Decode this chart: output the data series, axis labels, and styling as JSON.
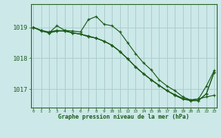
{
  "title": "Graphe pression niveau de la mer (hPa)",
  "bg_color": "#cce8e8",
  "grid_color": "#aacccc",
  "line_color": "#1a5c1a",
  "ylim": [
    1016.4,
    1019.75
  ],
  "yticks": [
    1017,
    1018,
    1019
  ],
  "xlim": [
    0,
    23
  ],
  "xticks": [
    0,
    1,
    2,
    3,
    4,
    5,
    6,
    7,
    8,
    9,
    10,
    11,
    12,
    13,
    14,
    15,
    16,
    17,
    18,
    19,
    20,
    21,
    22,
    23
  ],
  "series": [
    {
      "x": [
        0,
        1,
        2,
        3,
        4,
        5,
        6,
        7,
        8,
        9,
        10,
        11,
        12,
        13,
        14,
        15,
        16,
        17,
        18,
        19,
        20,
        21,
        22,
        23
      ],
      "y": [
        1019.0,
        1018.88,
        1018.82,
        1019.05,
        1018.9,
        1018.88,
        1018.85,
        1019.25,
        1019.35,
        1019.1,
        1019.05,
        1018.85,
        1018.5,
        1018.15,
        1017.85,
        1017.62,
        1017.3,
        1017.1,
        1016.95,
        1016.75,
        1016.65,
        1016.68,
        1017.1,
        1017.6
      ]
    },
    {
      "x": [
        0,
        1,
        2,
        3,
        4,
        5,
        6,
        7,
        8,
        9,
        10,
        11,
        12,
        13,
        14,
        15,
        16,
        17,
        18,
        19,
        20,
        21,
        22,
        23
      ],
      "y": [
        1019.0,
        1018.9,
        1018.82,
        1018.88,
        1018.9,
        1018.82,
        1018.78,
        1018.7,
        1018.65,
        1018.55,
        1018.42,
        1018.22,
        1017.98,
        1017.72,
        1017.5,
        1017.3,
        1017.12,
        1016.95,
        1016.82,
        1016.7,
        1016.65,
        1016.68,
        1016.75,
        1016.8
      ]
    },
    {
      "x": [
        0,
        1,
        2,
        3,
        4,
        5,
        6,
        7,
        8,
        9,
        10,
        11,
        12,
        13,
        14,
        15,
        16,
        17,
        18,
        19,
        20,
        21,
        22,
        23
      ],
      "y": [
        1019.0,
        1018.9,
        1018.82,
        1018.88,
        1018.88,
        1018.82,
        1018.78,
        1018.7,
        1018.65,
        1018.55,
        1018.42,
        1018.22,
        1017.98,
        1017.72,
        1017.5,
        1017.3,
        1017.12,
        1016.95,
        1016.8,
        1016.68,
        1016.63,
        1016.63,
        1016.85,
        1017.55
      ]
    },
    {
      "x": [
        0,
        1,
        2,
        3,
        4,
        5,
        6,
        7,
        8,
        9,
        10,
        11,
        12,
        13,
        14,
        15,
        16,
        17,
        18,
        19,
        20,
        21,
        22,
        23
      ],
      "y": [
        1019.0,
        1018.9,
        1018.85,
        1018.9,
        1018.88,
        1018.82,
        1018.78,
        1018.72,
        1018.65,
        1018.55,
        1018.42,
        1018.22,
        1017.98,
        1017.72,
        1017.5,
        1017.3,
        1017.12,
        1016.95,
        1016.8,
        1016.68,
        1016.63,
        1016.63,
        1016.85,
        1017.55
      ]
    }
  ]
}
